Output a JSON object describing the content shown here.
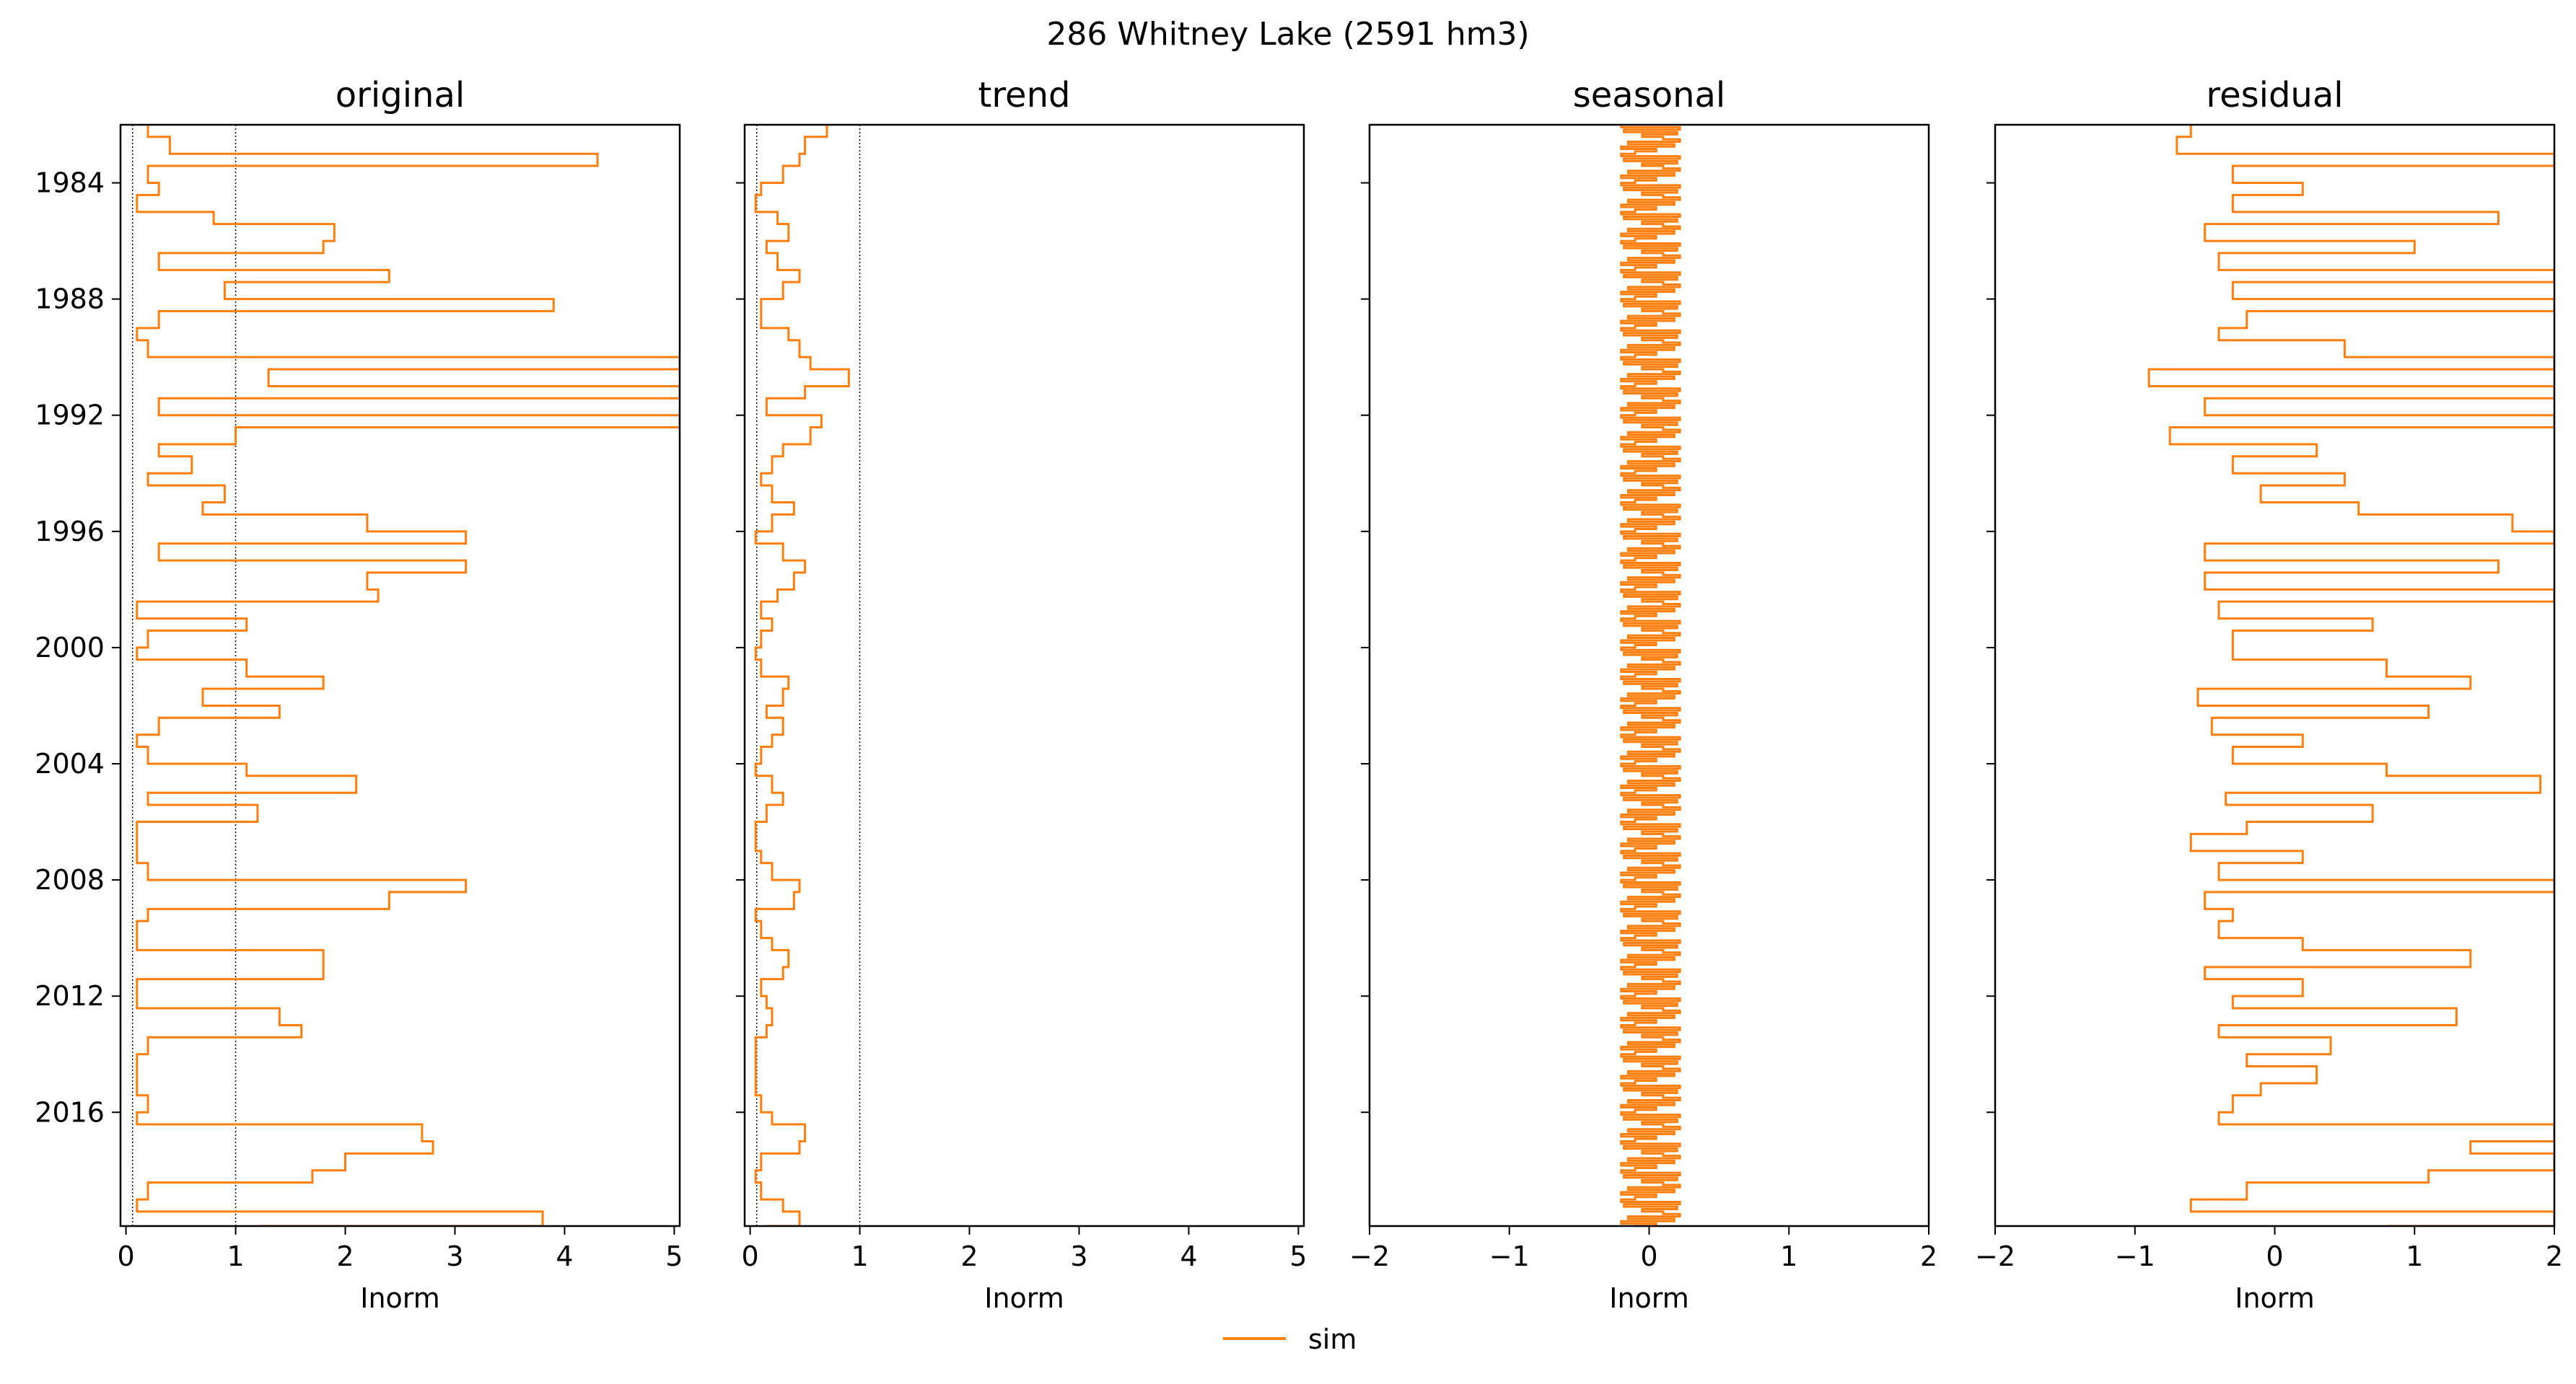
{
  "figure": {
    "suptitle": "286  Whitney Lake (2591 hm3)",
    "line_color": "#ff7f0e",
    "y_ticks": [
      "1984",
      "1988",
      "1992",
      "1996",
      "2000",
      "2004",
      "2008",
      "2012",
      "2016"
    ],
    "legend": {
      "label": "sim",
      "placement": "bottom-center"
    }
  },
  "chart_data": [
    {
      "type": "line",
      "title": "original",
      "xlabel": "Inorm",
      "ylabel": "",
      "xlim": [
        -0.05,
        5.05
      ],
      "ylim": [
        "1982-01",
        "2019-12"
      ],
      "y_inverted": true,
      "x_ticks": [
        0,
        1,
        2,
        3,
        4,
        5
      ],
      "x_tick_labels": [
        "0",
        "1",
        "2",
        "3",
        "4",
        "5"
      ],
      "reference_lines": [
        0.06,
        1
      ],
      "series": [
        {
          "name": "sim",
          "date": [
            "1982-01",
            "1982-06",
            "1983-01",
            "1983-06",
            "1984-01",
            "1984-06",
            "1985-01",
            "1985-06",
            "1986-01",
            "1986-06",
            "1987-01",
            "1987-06",
            "1988-01",
            "1988-06",
            "1989-01",
            "1989-06",
            "1990-01",
            "1990-06",
            "1991-01",
            "1991-06",
            "1992-01",
            "1992-06",
            "1993-01",
            "1993-06",
            "1994-01",
            "1994-06",
            "1995-01",
            "1995-06",
            "1996-01",
            "1996-06",
            "1997-01",
            "1997-06",
            "1998-01",
            "1998-06",
            "1999-01",
            "1999-06",
            "2000-01",
            "2000-06",
            "2001-01",
            "2001-06",
            "2002-01",
            "2002-06",
            "2003-01",
            "2003-06",
            "2004-01",
            "2004-06",
            "2005-01",
            "2005-06",
            "2006-01",
            "2006-06",
            "2007-01",
            "2007-06",
            "2008-01",
            "2008-06",
            "2009-01",
            "2009-06",
            "2010-01",
            "2010-06",
            "2011-01",
            "2011-06",
            "2012-01",
            "2012-06",
            "2013-01",
            "2013-06",
            "2014-01",
            "2014-06",
            "2015-01",
            "2015-06",
            "2016-01",
            "2016-06",
            "2017-01",
            "2017-06",
            "2018-01",
            "2018-06",
            "2019-01",
            "2019-06",
            "2019-12"
          ],
          "values": [
            0.2,
            0.4,
            4.3,
            0.2,
            0.3,
            0.1,
            0.8,
            1.9,
            1.8,
            0.3,
            2.4,
            0.9,
            3.9,
            0.3,
            0.1,
            0.2,
            7.0,
            1.3,
            6.5,
            0.3,
            6.8,
            1.0,
            0.3,
            0.6,
            0.2,
            0.9,
            0.7,
            2.2,
            3.1,
            0.3,
            3.1,
            2.2,
            2.3,
            0.1,
            1.1,
            0.2,
            0.1,
            1.1,
            1.8,
            0.7,
            1.4,
            0.3,
            0.1,
            0.2,
            1.1,
            2.1,
            0.2,
            1.2,
            0.1,
            0.1,
            0.1,
            0.2,
            3.1,
            2.4,
            0.2,
            0.1,
            0.1,
            1.8,
            1.8,
            0.1,
            0.1,
            1.4,
            1.6,
            0.2,
            0.1,
            0.1,
            0.1,
            0.2,
            0.1,
            2.7,
            2.8,
            2.0,
            1.7,
            0.2,
            0.1,
            3.8,
            1.2
          ]
        }
      ]
    },
    {
      "type": "line",
      "title": "trend",
      "xlabel": "Inorm",
      "ylabel": "",
      "xlim": [
        -0.05,
        5.05
      ],
      "ylim": [
        "1982-01",
        "2019-12"
      ],
      "y_inverted": true,
      "x_ticks": [
        0,
        1,
        2,
        3,
        4,
        5
      ],
      "x_tick_labels": [
        "0",
        "1",
        "2",
        "3",
        "4",
        "5"
      ],
      "reference_lines": [
        0.06,
        1
      ],
      "series": [
        {
          "name": "sim",
          "date": [
            "1982-01",
            "1982-06",
            "1983-01",
            "1983-06",
            "1984-01",
            "1984-06",
            "1985-01",
            "1985-06",
            "1986-01",
            "1986-06",
            "1987-01",
            "1987-06",
            "1988-01",
            "1988-06",
            "1989-01",
            "1989-06",
            "1990-01",
            "1990-06",
            "1991-01",
            "1991-06",
            "1992-01",
            "1992-06",
            "1993-01",
            "1993-06",
            "1994-01",
            "1994-06",
            "1995-01",
            "1995-06",
            "1996-01",
            "1996-06",
            "1997-01",
            "1997-06",
            "1998-01",
            "1998-06",
            "1999-01",
            "1999-06",
            "2000-01",
            "2000-06",
            "2001-01",
            "2001-06",
            "2002-01",
            "2002-06",
            "2003-01",
            "2003-06",
            "2004-01",
            "2004-06",
            "2005-01",
            "2005-06",
            "2006-01",
            "2006-06",
            "2007-01",
            "2007-06",
            "2008-01",
            "2008-06",
            "2009-01",
            "2009-06",
            "2010-01",
            "2010-06",
            "2011-01",
            "2011-06",
            "2012-01",
            "2012-06",
            "2013-01",
            "2013-06",
            "2014-01",
            "2014-06",
            "2015-01",
            "2015-06",
            "2016-01",
            "2016-06",
            "2017-01",
            "2017-06",
            "2018-01",
            "2018-06",
            "2019-01",
            "2019-06",
            "2019-12"
          ],
          "values": [
            0.7,
            0.5,
            0.45,
            0.3,
            0.1,
            0.05,
            0.25,
            0.35,
            0.15,
            0.25,
            0.45,
            0.3,
            0.1,
            0.1,
            0.35,
            0.45,
            0.55,
            0.9,
            0.5,
            0.15,
            0.65,
            0.55,
            0.3,
            0.2,
            0.1,
            0.2,
            0.4,
            0.2,
            0.05,
            0.3,
            0.5,
            0.4,
            0.25,
            0.1,
            0.2,
            0.1,
            0.05,
            0.1,
            0.35,
            0.3,
            0.15,
            0.3,
            0.2,
            0.1,
            0.05,
            0.2,
            0.3,
            0.15,
            0.05,
            0.05,
            0.1,
            0.2,
            0.45,
            0.4,
            0.05,
            0.1,
            0.2,
            0.35,
            0.3,
            0.1,
            0.15,
            0.2,
            0.15,
            0.05,
            0.05,
            0.05,
            0.05,
            0.1,
            0.2,
            0.5,
            0.45,
            0.1,
            0.05,
            0.1,
            0.3,
            0.45,
            0.15
          ]
        }
      ]
    },
    {
      "type": "line",
      "title": "seasonal",
      "xlabel": "Inorm",
      "ylabel": "",
      "xlim": [
        -2,
        2
      ],
      "ylim": [
        "1982-01",
        "2019-12"
      ],
      "y_inverted": true,
      "x_ticks": [
        -2,
        -1,
        0,
        1,
        2
      ],
      "x_tick_labels": [
        "−2",
        "−1",
        "0",
        "1",
        "2"
      ],
      "reference_lines": [],
      "series": [
        {
          "name": "sim",
          "cycle_period_months": 12,
          "cycle_values": [
            -0.2,
            0.22,
            -0.18,
            0.2,
            -0.05,
            0.1,
            0.22,
            -0.15,
            0.18,
            -0.2,
            0.05,
            -0.1
          ]
        }
      ]
    },
    {
      "type": "line",
      "title": "residual",
      "xlabel": "Inorm",
      "ylabel": "",
      "xlim": [
        -2,
        2
      ],
      "ylim": [
        "1982-01",
        "2019-12"
      ],
      "y_inverted": true,
      "x_ticks": [
        -2,
        -1,
        0,
        1,
        2
      ],
      "x_tick_labels": [
        "−2",
        "−1",
        "0",
        "1",
        "2"
      ],
      "reference_lines": [],
      "series": [
        {
          "name": "sim",
          "date": [
            "1982-01",
            "1982-06",
            "1983-01",
            "1983-06",
            "1984-01",
            "1984-06",
            "1985-01",
            "1985-06",
            "1986-01",
            "1986-06",
            "1987-01",
            "1987-06",
            "1988-01",
            "1988-06",
            "1989-01",
            "1989-06",
            "1990-01",
            "1990-06",
            "1991-01",
            "1991-06",
            "1992-01",
            "1992-06",
            "1993-01",
            "1993-06",
            "1994-01",
            "1994-06",
            "1995-01",
            "1995-06",
            "1996-01",
            "1996-06",
            "1997-01",
            "1997-06",
            "1998-01",
            "1998-06",
            "1999-01",
            "1999-06",
            "2000-01",
            "2000-06",
            "2001-01",
            "2001-06",
            "2002-01",
            "2002-06",
            "2003-01",
            "2003-06",
            "2004-01",
            "2004-06",
            "2005-01",
            "2005-06",
            "2006-01",
            "2006-06",
            "2007-01",
            "2007-06",
            "2008-01",
            "2008-06",
            "2009-01",
            "2009-06",
            "2010-01",
            "2010-06",
            "2011-01",
            "2011-06",
            "2012-01",
            "2012-06",
            "2013-01",
            "2013-06",
            "2014-01",
            "2014-06",
            "2015-01",
            "2015-06",
            "2016-01",
            "2016-06",
            "2017-01",
            "2017-06",
            "2018-01",
            "2018-06",
            "2019-01",
            "2019-06",
            "2019-12"
          ],
          "values": [
            -0.6,
            -0.7,
            3.5,
            -0.3,
            0.2,
            -0.3,
            1.6,
            -0.5,
            1.0,
            -0.4,
            2.0,
            -0.3,
            2.5,
            -0.2,
            -0.4,
            0.5,
            2.8,
            -0.9,
            2.2,
            -0.5,
            2.3,
            -0.75,
            0.3,
            -0.3,
            0.5,
            -0.1,
            0.6,
            1.7,
            2.2,
            -0.5,
            1.6,
            -0.5,
            2.1,
            -0.4,
            0.7,
            -0.3,
            -0.3,
            0.8,
            1.4,
            -0.55,
            1.1,
            -0.45,
            0.2,
            -0.3,
            0.8,
            1.9,
            -0.35,
            0.7,
            -0.2,
            -0.6,
            0.2,
            -0.4,
            2.4,
            -0.5,
            -0.3,
            -0.4,
            0.2,
            1.4,
            -0.5,
            0.2,
            -0.3,
            1.3,
            -0.4,
            0.4,
            -0.2,
            0.3,
            -0.1,
            -0.3,
            -0.4,
            2.2,
            1.4,
            2.2,
            1.1,
            -0.2,
            -0.6,
            2.6,
            0.8
          ]
        }
      ]
    }
  ]
}
